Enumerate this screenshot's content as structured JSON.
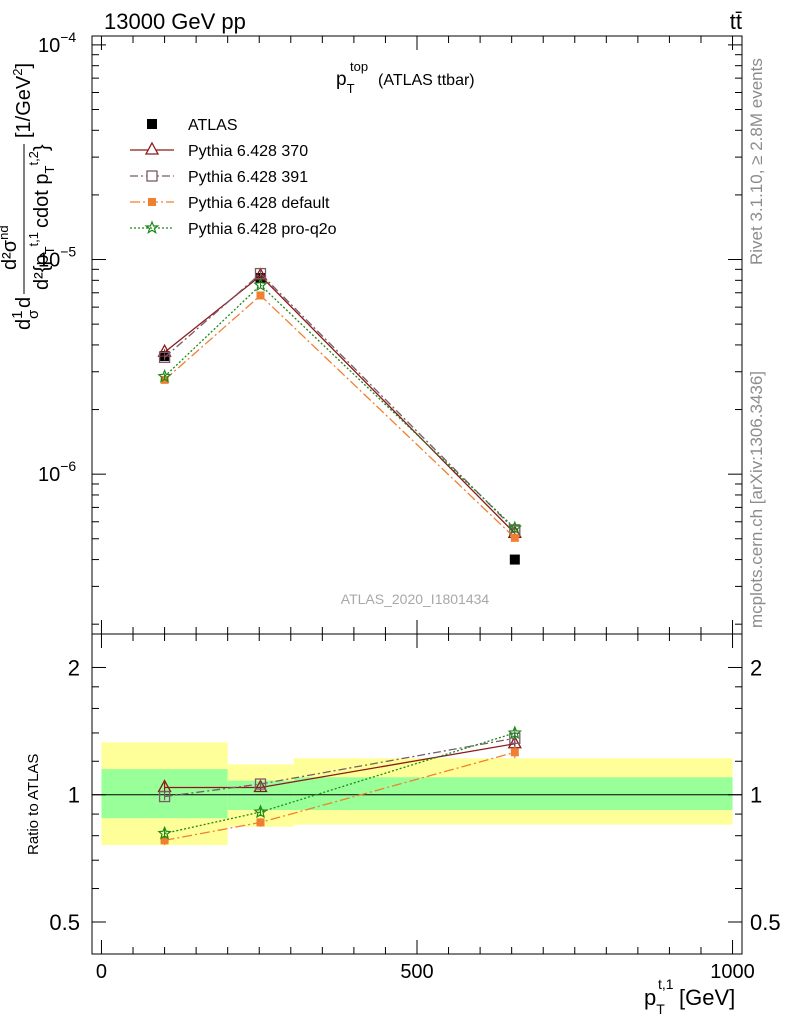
{
  "header": {
    "energy_label": "13000 GeV pp",
    "process_label": "tt̄"
  },
  "plot_title": {
    "main": "p",
    "sup": "top",
    "sub": "T",
    "rest": "(ATLAS ttbar)"
  },
  "side_labels": {
    "rivet": "Rivet 3.1.10, ≥ 2.8M events",
    "mcplots": "mcplots.cern.ch [arXiv:1306.3436]"
  },
  "analysis_watermark": "ATLAS_2020_I1801434",
  "colors": {
    "atlas": "#000000",
    "py370": "#8b1a1a",
    "py391": "#7a5a6a",
    "pydefault": "#f08030",
    "pyq2o": "#1a8a1a",
    "band_inner": "#99ff99",
    "band_outer": "#ffff99"
  },
  "chart_data": [
    {
      "type": "line",
      "name": "main",
      "yscale": "log",
      "xlim": [
        -15,
        1015
      ],
      "ylim": [
        1.8e-07,
        0.00011
      ],
      "ylabel": "d²σⁿᵈ / d²{p_T^{t,1} cdot p_T^{t,2}} [1/GeV²]",
      "ylabel_parts": {
        "frac_top": "d²σ",
        "frac_top_sup": "nd",
        "frac_bot": "d²{p",
        "frac_bot_sup1": "t,1",
        "frac_bot_sub1": "T",
        "frac_bot_mid": "cdot p",
        "frac_bot_sup2": "t,2",
        "frac_bot_sub2": "T",
        "frac_bot_end": "}",
        "prefix": "d",
        "one_over": "1",
        "sigma": "σ",
        "d2": "d",
        "unit": "[1/GeV",
        "unit_sup": "2",
        "unit_end": "]"
      },
      "y_ticks": [
        {
          "value": 0.0001,
          "base": "10",
          "exp": "−4"
        },
        {
          "value": 1e-05,
          "base": "10",
          "exp": "−5"
        },
        {
          "value": 1e-06,
          "base": "10",
          "exp": "−6"
        }
      ],
      "x_bins": [
        [
          0,
          200
        ],
        [
          200,
          305
        ],
        [
          305,
          1000
        ]
      ],
      "series": [
        {
          "name": "ATLAS",
          "key": "atlas",
          "marker": "square-filled",
          "line": "none",
          "x": [
            100,
            252,
            655
          ],
          "y": [
            3.55e-06,
            8.2e-06,
            4e-07
          ]
        },
        {
          "name": "Pythia 6.428 370",
          "key": "py370",
          "marker": "triangle-open",
          "line": "solid",
          "x": [
            100,
            252,
            655
          ],
          "y": [
            3.7e-06,
            8.4e-06,
            5.3e-07
          ]
        },
        {
          "name": "Pythia 6.428 391",
          "key": "py391",
          "marker": "square-open",
          "line": "dashdot",
          "x": [
            100,
            252,
            655
          ],
          "y": [
            3.5e-06,
            8.6e-06,
            5.5e-07
          ]
        },
        {
          "name": "Pythia 6.428 default",
          "key": "pydefault",
          "marker": "square-filled-small",
          "line": "dashdotlong",
          "x": [
            100,
            252,
            655
          ],
          "y": [
            2.75e-06,
            6.8e-06,
            5.05e-07
          ]
        },
        {
          "name": "Pythia 6.428 pro-q2o",
          "key": "pyq2o",
          "marker": "star",
          "line": "dotted",
          "x": [
            100,
            252,
            655
          ],
          "y": [
            2.85e-06,
            7.6e-06,
            5.6e-07
          ]
        }
      ]
    },
    {
      "type": "line",
      "name": "ratio",
      "yscale": "log",
      "xlim": [
        -15,
        1015
      ],
      "ylim": [
        0.42,
        2.4
      ],
      "xlabel_main": "p",
      "xlabel_sup": "t,1",
      "xlabel_sub": "T",
      "xlabel_unit": "[GeV]",
      "ylabel": "Ratio to ATLAS",
      "x_ticks": [
        {
          "value": 0,
          "label": "0"
        },
        {
          "value": 500,
          "label": "500"
        },
        {
          "value": 1000,
          "label": "1000"
        }
      ],
      "y_ticks": [
        {
          "value": 0.5,
          "label": "0.5"
        },
        {
          "value": 1,
          "label": "1"
        },
        {
          "value": 2,
          "label": "2"
        }
      ],
      "bands": [
        {
          "x": [
            0,
            200
          ],
          "inner": [
            0.88,
            1.15
          ],
          "outer": [
            0.76,
            1.33
          ]
        },
        {
          "x": [
            200,
            305
          ],
          "inner": [
            0.92,
            1.08
          ],
          "outer": [
            0.84,
            1.18
          ]
        },
        {
          "x": [
            305,
            1000
          ],
          "inner": [
            0.92,
            1.1
          ],
          "outer": [
            0.85,
            1.22
          ]
        }
      ],
      "series": [
        {
          "name": "Pythia 6.428 370",
          "key": "py370",
          "x": [
            100,
            252,
            655
          ],
          "y": [
            1.04,
            1.04,
            1.32
          ],
          "err": [
            0.03,
            0.02,
            0.04
          ]
        },
        {
          "name": "Pythia 6.428 391",
          "key": "py391",
          "x": [
            100,
            252,
            655
          ],
          "y": [
            0.99,
            1.06,
            1.36
          ],
          "err": [
            0.02,
            0.02,
            0.04
          ]
        },
        {
          "name": "Pythia 6.428 default",
          "key": "pydefault",
          "x": [
            100,
            252,
            655
          ],
          "y": [
            0.78,
            0.86,
            1.26
          ],
          "err": [
            0.02,
            0.02,
            0.04
          ]
        },
        {
          "name": "Pythia 6.428 pro-q2o",
          "key": "pyq2o",
          "x": [
            100,
            252,
            655
          ],
          "y": [
            0.81,
            0.91,
            1.4
          ],
          "err": [
            0.02,
            0.02,
            0.04
          ]
        }
      ]
    }
  ]
}
